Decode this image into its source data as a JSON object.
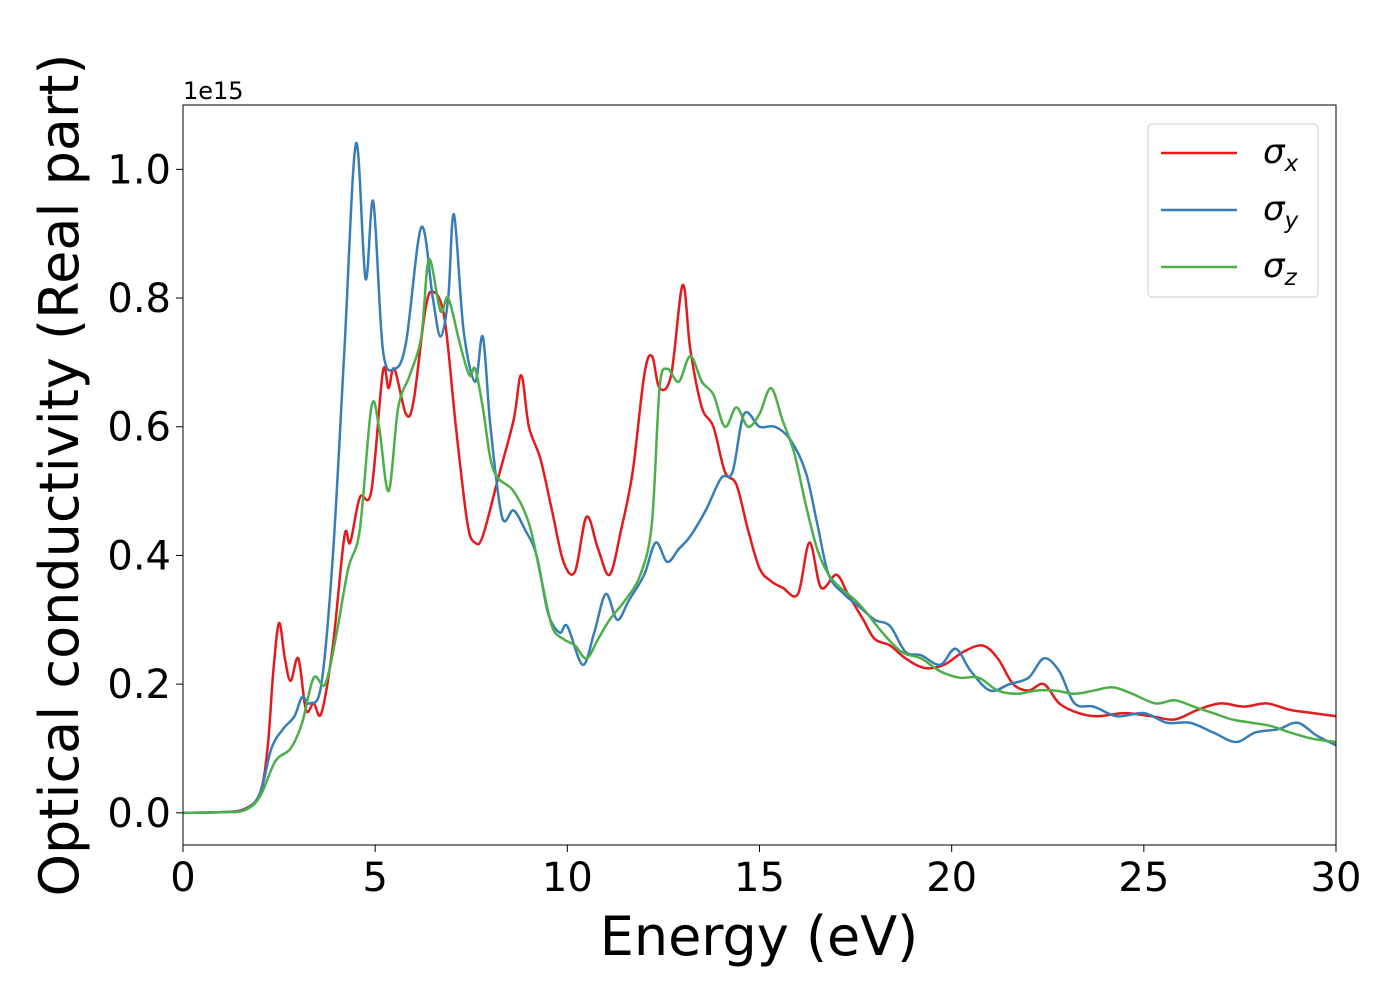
{
  "chart_data": {
    "type": "line",
    "title": "",
    "xlabel": "Energy (eV)",
    "ylabel": "Optical conductivity (Real part)",
    "offset_text": "1e15",
    "xlim": [
      0,
      30
    ],
    "ylim": [
      -0.05,
      1.1
    ],
    "xticks": [
      0,
      5,
      10,
      15,
      20,
      25,
      30
    ],
    "xtick_labels": [
      "0",
      "5",
      "10",
      "15",
      "20",
      "25",
      "30"
    ],
    "yticks": [
      0.0,
      0.2,
      0.4,
      0.6,
      0.8,
      1.0
    ],
    "ytick_labels": [
      "0.0",
      "0.2",
      "0.4",
      "0.6",
      "0.8",
      "1.0"
    ],
    "grid": false,
    "legend_position": "top-right",
    "series": [
      {
        "name": "σ_x",
        "label_base": "σ",
        "label_sub": "x",
        "color": "#e41a1c",
        "points": [
          [
            0,
            0
          ],
          [
            1,
            0.001
          ],
          [
            1.6,
            0.006
          ],
          [
            2.0,
            0.03
          ],
          [
            2.2,
            0.1
          ],
          [
            2.35,
            0.22
          ],
          [
            2.5,
            0.295
          ],
          [
            2.65,
            0.24
          ],
          [
            2.8,
            0.205
          ],
          [
            3.0,
            0.24
          ],
          [
            3.2,
            0.16
          ],
          [
            3.4,
            0.17
          ],
          [
            3.6,
            0.155
          ],
          [
            3.9,
            0.26
          ],
          [
            4.2,
            0.43
          ],
          [
            4.35,
            0.42
          ],
          [
            4.6,
            0.49
          ],
          [
            4.9,
            0.5
          ],
          [
            5.2,
            0.685
          ],
          [
            5.35,
            0.66
          ],
          [
            5.5,
            0.69
          ],
          [
            5.8,
            0.62
          ],
          [
            6.0,
            0.64
          ],
          [
            6.3,
            0.78
          ],
          [
            6.5,
            0.81
          ],
          [
            6.8,
            0.77
          ],
          [
            7.1,
            0.6
          ],
          [
            7.4,
            0.45
          ],
          [
            7.6,
            0.42
          ],
          [
            7.8,
            0.43
          ],
          [
            8.2,
            0.52
          ],
          [
            8.6,
            0.61
          ],
          [
            8.8,
            0.68
          ],
          [
            9.0,
            0.6
          ],
          [
            9.3,
            0.55
          ],
          [
            9.6,
            0.47
          ],
          [
            9.9,
            0.39
          ],
          [
            10.2,
            0.375
          ],
          [
            10.5,
            0.46
          ],
          [
            10.8,
            0.41
          ],
          [
            11.1,
            0.37
          ],
          [
            11.4,
            0.44
          ],
          [
            11.7,
            0.53
          ],
          [
            12.0,
            0.68
          ],
          [
            12.2,
            0.71
          ],
          [
            12.4,
            0.66
          ],
          [
            12.7,
            0.68
          ],
          [
            13.0,
            0.82
          ],
          [
            13.2,
            0.72
          ],
          [
            13.5,
            0.63
          ],
          [
            13.8,
            0.6
          ],
          [
            14.1,
            0.53
          ],
          [
            14.4,
            0.51
          ],
          [
            14.7,
            0.44
          ],
          [
            15.0,
            0.38
          ],
          [
            15.3,
            0.36
          ],
          [
            15.6,
            0.35
          ],
          [
            16.0,
            0.34
          ],
          [
            16.3,
            0.42
          ],
          [
            16.6,
            0.35
          ],
          [
            17.0,
            0.37
          ],
          [
            17.3,
            0.34
          ],
          [
            17.7,
            0.3
          ],
          [
            18.0,
            0.27
          ],
          [
            18.4,
            0.26
          ],
          [
            18.8,
            0.24
          ],
          [
            19.3,
            0.225
          ],
          [
            19.8,
            0.23
          ],
          [
            20.3,
            0.25
          ],
          [
            20.8,
            0.26
          ],
          [
            21.2,
            0.24
          ],
          [
            21.6,
            0.2
          ],
          [
            22.0,
            0.19
          ],
          [
            22.4,
            0.2
          ],
          [
            22.8,
            0.17
          ],
          [
            23.3,
            0.155
          ],
          [
            23.8,
            0.15
          ],
          [
            24.5,
            0.155
          ],
          [
            25.2,
            0.15
          ],
          [
            25.8,
            0.145
          ],
          [
            26.4,
            0.16
          ],
          [
            27.0,
            0.17
          ],
          [
            27.6,
            0.165
          ],
          [
            28.2,
            0.17
          ],
          [
            28.8,
            0.16
          ],
          [
            29.4,
            0.155
          ],
          [
            30,
            0.15
          ]
        ]
      },
      {
        "name": "σ_y",
        "label_base": "σ",
        "label_sub": "y",
        "color": "#377eb8",
        "points": [
          [
            0,
            0
          ],
          [
            1,
            0.001
          ],
          [
            1.6,
            0.005
          ],
          [
            2.0,
            0.03
          ],
          [
            2.3,
            0.1
          ],
          [
            2.6,
            0.13
          ],
          [
            2.9,
            0.15
          ],
          [
            3.1,
            0.18
          ],
          [
            3.3,
            0.17
          ],
          [
            3.6,
            0.2
          ],
          [
            3.9,
            0.4
          ],
          [
            4.2,
            0.72
          ],
          [
            4.5,
            1.04
          ],
          [
            4.75,
            0.83
          ],
          [
            4.95,
            0.95
          ],
          [
            5.2,
            0.72
          ],
          [
            5.5,
            0.69
          ],
          [
            5.8,
            0.73
          ],
          [
            6.2,
            0.91
          ],
          [
            6.5,
            0.8
          ],
          [
            6.7,
            0.74
          ],
          [
            6.9,
            0.8
          ],
          [
            7.05,
            0.93
          ],
          [
            7.3,
            0.75
          ],
          [
            7.6,
            0.67
          ],
          [
            7.8,
            0.74
          ],
          [
            8.0,
            0.6
          ],
          [
            8.3,
            0.46
          ],
          [
            8.6,
            0.47
          ],
          [
            8.9,
            0.44
          ],
          [
            9.2,
            0.4
          ],
          [
            9.5,
            0.31
          ],
          [
            9.8,
            0.28
          ],
          [
            10.0,
            0.29
          ],
          [
            10.4,
            0.23
          ],
          [
            10.7,
            0.28
          ],
          [
            11.0,
            0.34
          ],
          [
            11.3,
            0.3
          ],
          [
            11.6,
            0.33
          ],
          [
            12.0,
            0.37
          ],
          [
            12.3,
            0.42
          ],
          [
            12.6,
            0.39
          ],
          [
            12.9,
            0.41
          ],
          [
            13.2,
            0.43
          ],
          [
            13.6,
            0.47
          ],
          [
            14.0,
            0.52
          ],
          [
            14.3,
            0.53
          ],
          [
            14.6,
            0.62
          ],
          [
            15.0,
            0.6
          ],
          [
            15.4,
            0.6
          ],
          [
            15.8,
            0.58
          ],
          [
            16.2,
            0.53
          ],
          [
            16.5,
            0.45
          ],
          [
            16.8,
            0.37
          ],
          [
            17.2,
            0.34
          ],
          [
            17.6,
            0.32
          ],
          [
            18.0,
            0.3
          ],
          [
            18.4,
            0.29
          ],
          [
            18.8,
            0.25
          ],
          [
            19.2,
            0.245
          ],
          [
            19.7,
            0.23
          ],
          [
            20.1,
            0.255
          ],
          [
            20.5,
            0.22
          ],
          [
            21.0,
            0.19
          ],
          [
            21.5,
            0.2
          ],
          [
            22.0,
            0.21
          ],
          [
            22.4,
            0.24
          ],
          [
            22.8,
            0.22
          ],
          [
            23.2,
            0.17
          ],
          [
            23.7,
            0.165
          ],
          [
            24.3,
            0.15
          ],
          [
            25.0,
            0.155
          ],
          [
            25.6,
            0.14
          ],
          [
            26.2,
            0.14
          ],
          [
            26.8,
            0.125
          ],
          [
            27.4,
            0.11
          ],
          [
            27.9,
            0.125
          ],
          [
            28.5,
            0.13
          ],
          [
            29.0,
            0.14
          ],
          [
            29.5,
            0.12
          ],
          [
            30,
            0.105
          ]
        ]
      },
      {
        "name": "σ_z",
        "label_base": "σ",
        "label_sub": "z",
        "color": "#4daf4a",
        "points": [
          [
            0,
            0
          ],
          [
            1,
            0.001
          ],
          [
            1.6,
            0.004
          ],
          [
            2.0,
            0.025
          ],
          [
            2.4,
            0.08
          ],
          [
            2.8,
            0.1
          ],
          [
            3.1,
            0.14
          ],
          [
            3.4,
            0.21
          ],
          [
            3.7,
            0.2
          ],
          [
            4.0,
            0.28
          ],
          [
            4.3,
            0.38
          ],
          [
            4.6,
            0.44
          ],
          [
            4.9,
            0.63
          ],
          [
            5.1,
            0.6
          ],
          [
            5.35,
            0.5
          ],
          [
            5.6,
            0.63
          ],
          [
            5.9,
            0.68
          ],
          [
            6.2,
            0.74
          ],
          [
            6.4,
            0.86
          ],
          [
            6.7,
            0.78
          ],
          [
            6.9,
            0.8
          ],
          [
            7.2,
            0.73
          ],
          [
            7.45,
            0.68
          ],
          [
            7.6,
            0.69
          ],
          [
            7.8,
            0.63
          ],
          [
            8.0,
            0.55
          ],
          [
            8.2,
            0.52
          ],
          [
            8.6,
            0.5
          ],
          [
            9.0,
            0.45
          ],
          [
            9.3,
            0.37
          ],
          [
            9.6,
            0.29
          ],
          [
            9.9,
            0.27
          ],
          [
            10.2,
            0.26
          ],
          [
            10.5,
            0.24
          ],
          [
            10.8,
            0.27
          ],
          [
            11.1,
            0.3
          ],
          [
            11.5,
            0.33
          ],
          [
            11.9,
            0.37
          ],
          [
            12.2,
            0.45
          ],
          [
            12.4,
            0.66
          ],
          [
            12.6,
            0.69
          ],
          [
            12.9,
            0.67
          ],
          [
            13.2,
            0.71
          ],
          [
            13.5,
            0.67
          ],
          [
            13.8,
            0.65
          ],
          [
            14.1,
            0.6
          ],
          [
            14.4,
            0.63
          ],
          [
            14.7,
            0.6
          ],
          [
            15.0,
            0.62
          ],
          [
            15.3,
            0.66
          ],
          [
            15.6,
            0.61
          ],
          [
            15.9,
            0.56
          ],
          [
            16.2,
            0.48
          ],
          [
            16.5,
            0.41
          ],
          [
            16.8,
            0.37
          ],
          [
            17.1,
            0.35
          ],
          [
            17.5,
            0.33
          ],
          [
            17.8,
            0.31
          ],
          [
            18.2,
            0.28
          ],
          [
            18.7,
            0.25
          ],
          [
            19.2,
            0.24
          ],
          [
            19.7,
            0.22
          ],
          [
            20.2,
            0.21
          ],
          [
            20.7,
            0.21
          ],
          [
            21.2,
            0.19
          ],
          [
            21.7,
            0.185
          ],
          [
            22.2,
            0.19
          ],
          [
            22.7,
            0.19
          ],
          [
            23.2,
            0.185
          ],
          [
            23.7,
            0.19
          ],
          [
            24.2,
            0.195
          ],
          [
            24.7,
            0.185
          ],
          [
            25.3,
            0.17
          ],
          [
            25.8,
            0.175
          ],
          [
            26.3,
            0.165
          ],
          [
            26.8,
            0.155
          ],
          [
            27.3,
            0.145
          ],
          [
            27.8,
            0.14
          ],
          [
            28.3,
            0.135
          ],
          [
            28.8,
            0.125
          ],
          [
            29.4,
            0.115
          ],
          [
            30,
            0.11
          ]
        ]
      }
    ]
  }
}
